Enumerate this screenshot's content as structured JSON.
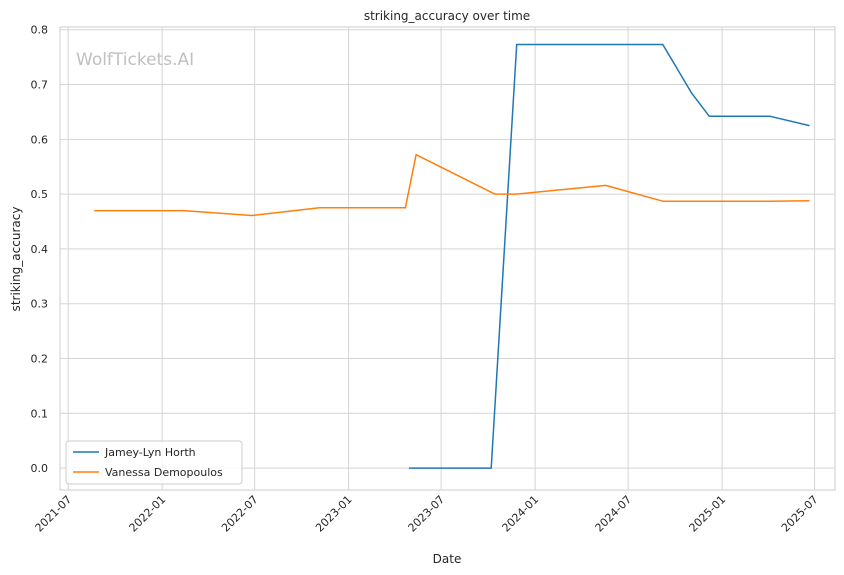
{
  "chart_data": {
    "type": "line",
    "title": "striking_accuracy over time",
    "xlabel": "Date",
    "ylabel": "striking_accuracy",
    "watermark": "WolfTickets.AI",
    "x_ticks": [
      "2021-07",
      "2022-01",
      "2022-07",
      "2023-01",
      "2023-07",
      "2024-01",
      "2024-07",
      "2025-01",
      "2025-07"
    ],
    "y_ticks": [
      "0.0",
      "0.1",
      "0.2",
      "0.3",
      "0.4",
      "0.5",
      "0.6",
      "0.7",
      "0.8"
    ],
    "xlim": [
      "2021-06-15",
      "2025-08-10"
    ],
    "ylim": [
      -0.04,
      0.805
    ],
    "grid": true,
    "legend_position": "lower-left",
    "series": [
      {
        "name": "Jamey-Lyn Horth",
        "color": "#1f77b4",
        "points": [
          {
            "x": "2023-04-29",
            "y": 0.0
          },
          {
            "x": "2023-10-07",
            "y": 0.0
          },
          {
            "x": "2023-11-26",
            "y": 0.773
          },
          {
            "x": "2024-09-07",
            "y": 0.773
          },
          {
            "x": "2024-11-02",
            "y": 0.685
          },
          {
            "x": "2024-12-07",
            "y": 0.642
          },
          {
            "x": "2025-04-05",
            "y": 0.642
          },
          {
            "x": "2025-06-21",
            "y": 0.625
          }
        ]
      },
      {
        "name": "Vanessa Demopoulos",
        "color": "#ff7f0e",
        "points": [
          {
            "x": "2021-08-21",
            "y": 0.47
          },
          {
            "x": "2022-02-12",
            "y": 0.47
          },
          {
            "x": "2022-06-25",
            "y": 0.461
          },
          {
            "x": "2022-11-05",
            "y": 0.475
          },
          {
            "x": "2023-04-22",
            "y": 0.475
          },
          {
            "x": "2023-05-13",
            "y": 0.572
          },
          {
            "x": "2023-10-14",
            "y": 0.5
          },
          {
            "x": "2023-11-25",
            "y": 0.5
          },
          {
            "x": "2024-05-18",
            "y": 0.516
          },
          {
            "x": "2024-09-07",
            "y": 0.487
          },
          {
            "x": "2025-04-05",
            "y": 0.487
          },
          {
            "x": "2025-06-21",
            "y": 0.488
          }
        ]
      }
    ]
  }
}
